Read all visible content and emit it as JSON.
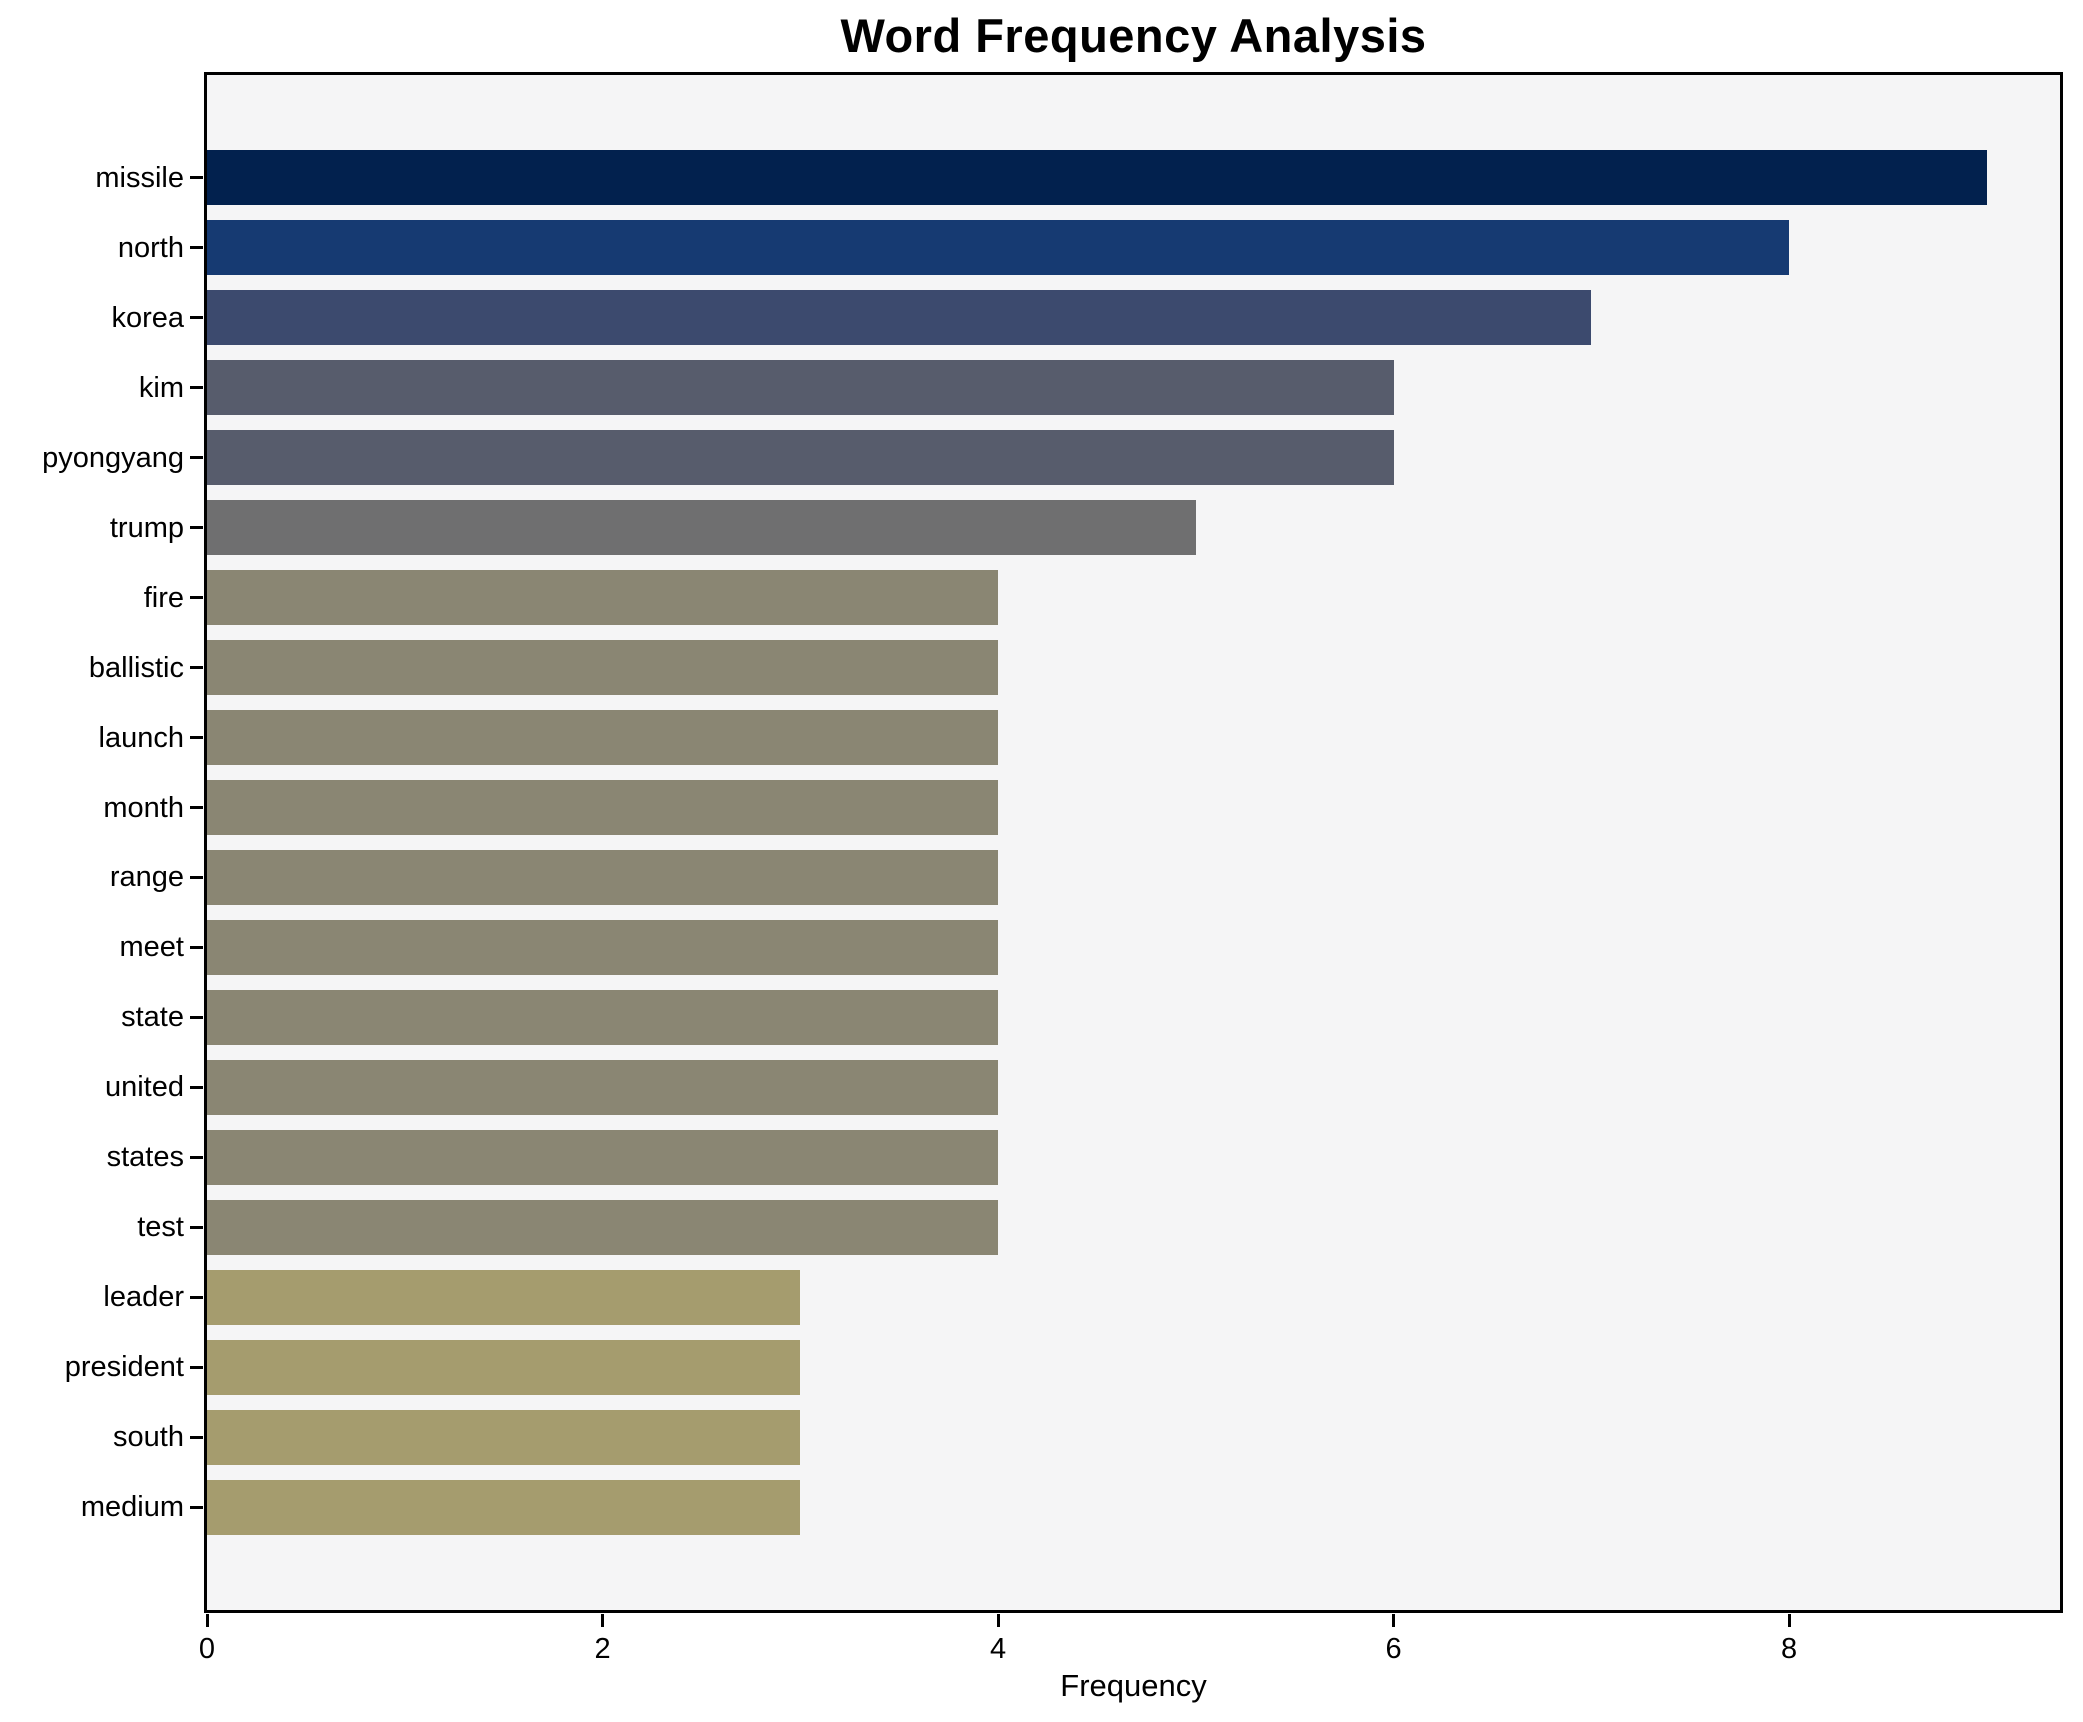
{
  "title": "Word Frequency Analysis",
  "chart_data": {
    "type": "bar",
    "orientation": "horizontal",
    "title": "Word Frequency Analysis",
    "xlabel": "Frequency",
    "ylabel": "",
    "categories": [
      "missile",
      "north",
      "korea",
      "kim",
      "pyongyang",
      "trump",
      "fire",
      "ballistic",
      "launch",
      "month",
      "range",
      "meet",
      "state",
      "united",
      "states",
      "test",
      "leader",
      "president",
      "south",
      "medium"
    ],
    "values": [
      9,
      8,
      7,
      6,
      6,
      5,
      4,
      4,
      4,
      4,
      4,
      4,
      4,
      4,
      4,
      4,
      3,
      3,
      3,
      3
    ],
    "bar_colors": [
      "#02214e",
      "#163a72",
      "#3c4a6e",
      "#575c6c",
      "#575c6c",
      "#6f6f70",
      "#8a8673",
      "#8a8673",
      "#8a8673",
      "#8a8673",
      "#8a8673",
      "#8a8673",
      "#8a8673",
      "#8a8673",
      "#8a8673",
      "#8a8673",
      "#a59c6e",
      "#a59c6e",
      "#a59c6e",
      "#a59c6e"
    ],
    "xlim": [
      0,
      9.37
    ],
    "xticks": [
      0,
      2,
      4,
      6,
      8
    ],
    "grid": false,
    "legend": null,
    "plot_background": "#f5f5f6",
    "figure_background": "#ffffff",
    "spine_color": "#000000",
    "colormap": "cividis"
  }
}
